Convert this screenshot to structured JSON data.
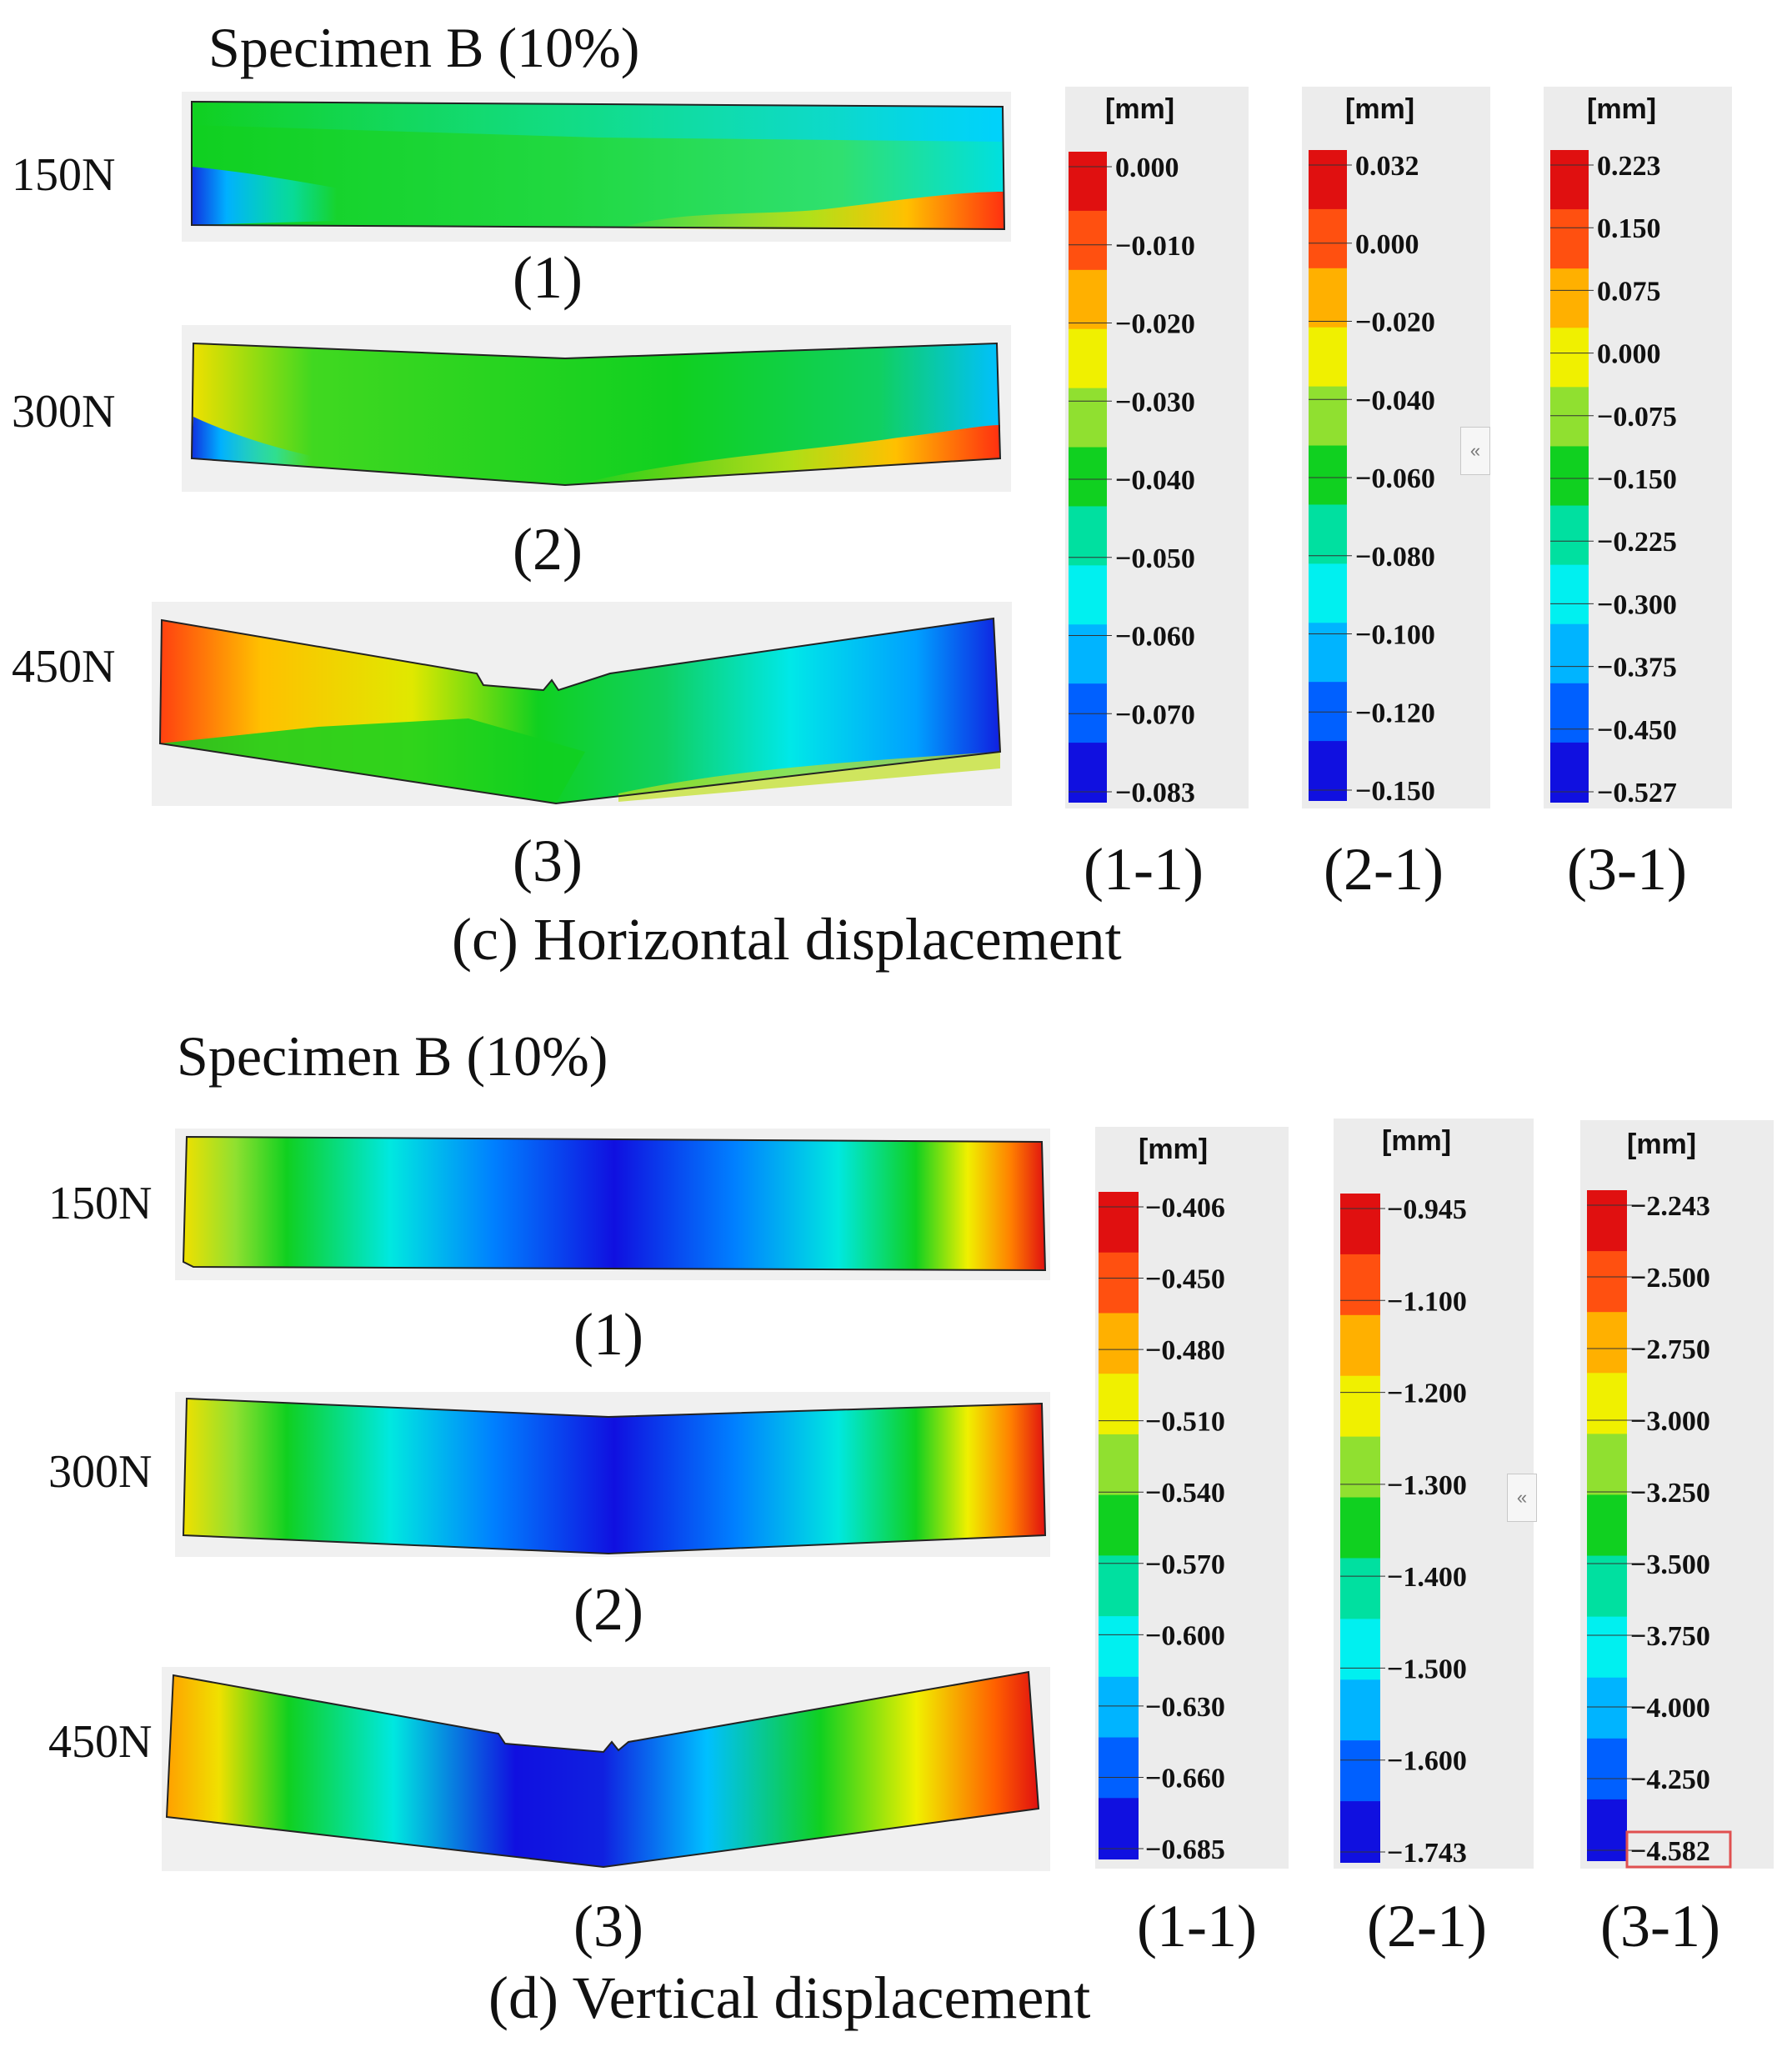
{
  "colors": {
    "ramp": [
      "#1010e0",
      "#0060ff",
      "#00b4ff",
      "#00f0f0",
      "#00e0a0",
      "#10d020",
      "#90e030",
      "#f0f000",
      "#ffb000",
      "#ff5010",
      "#e01010"
    ],
    "panel_bg": "#f0f0f0",
    "legend_bg": "#ececec",
    "highlight": "#e05050"
  },
  "sections": [
    {
      "id": "c",
      "title": "Specimen B (10%)",
      "caption": "(c) Horizontal displacement",
      "panels": [
        {
          "load": "150N",
          "label": "(1)",
          "field": "horiz-1"
        },
        {
          "load": "300N",
          "label": "(2)",
          "field": "horiz-2"
        },
        {
          "load": "450N",
          "label": "(3)",
          "field": "horiz-3"
        }
      ],
      "colorbars": [
        {
          "label": "(1-1)",
          "unit": "[mm]",
          "collapse": "",
          "ticks": [
            "0.000",
            "−0.010",
            "−0.020",
            "−0.030",
            "−0.040",
            "−0.050",
            "−0.060",
            "−0.070",
            "−0.083"
          ]
        },
        {
          "label": "(2-1)",
          "unit": "[mm]",
          "collapse": "«",
          "ticks": [
            "0.032",
            "0.000",
            "−0.020",
            "−0.040",
            "−0.060",
            "−0.080",
            "−0.100",
            "−0.120",
            "−0.150"
          ]
        },
        {
          "label": "(3-1)",
          "unit": "[mm]",
          "collapse": "",
          "ticks": [
            "0.223",
            "0.150",
            "0.075",
            "0.000",
            "−0.075",
            "−0.150",
            "−0.225",
            "−0.300",
            "−0.375",
            "−0.450",
            "−0.527"
          ]
        }
      ]
    },
    {
      "id": "d",
      "title": "Specimen B (10%)",
      "caption": "(d) Vertical displacement",
      "panels": [
        {
          "load": "150N",
          "label": "(1)",
          "field": "vert"
        },
        {
          "load": "300N",
          "label": "(2)",
          "field": "vert"
        },
        {
          "load": "450N",
          "label": "(3)",
          "field": "vert"
        }
      ],
      "colorbars": [
        {
          "label": "(1-1)",
          "unit": "[mm]",
          "collapse": "",
          "ticks": [
            "−0.406",
            "−0.450",
            "−0.480",
            "−0.510",
            "−0.540",
            "−0.570",
            "−0.600",
            "−0.630",
            "−0.660",
            "−0.685"
          ]
        },
        {
          "label": "(2-1)",
          "unit": "[mm]",
          "collapse": "«",
          "ticks": [
            "−0.945",
            "−1.100",
            "−1.200",
            "−1.300",
            "−1.400",
            "−1.500",
            "−1.600",
            "−1.743"
          ]
        },
        {
          "label": "(3-1)",
          "unit": "[mm]",
          "collapse": "",
          "highlight_last": true,
          "ticks": [
            "−2.243",
            "−2.500",
            "−2.750",
            "−3.000",
            "−3.250",
            "−3.500",
            "−3.750",
            "−4.000",
            "−4.250",
            "−4.582"
          ]
        }
      ]
    }
  ]
}
